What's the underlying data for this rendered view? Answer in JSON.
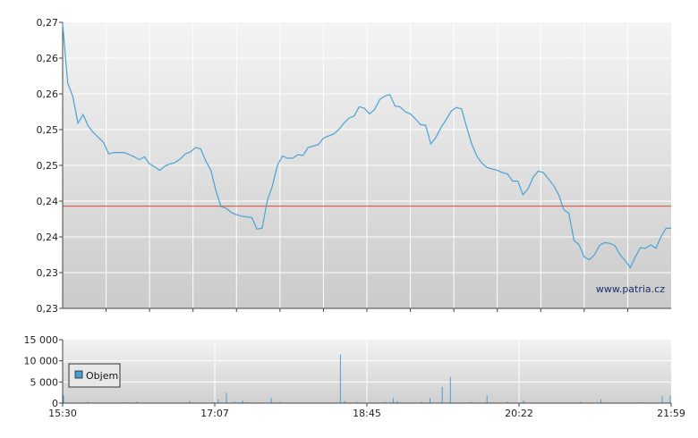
{
  "chart_data": [
    {
      "type": "line",
      "ylim": [
        0.23,
        0.27
      ],
      "ytick_labels": [
        "0,27",
        "0,26",
        "0,26",
        "0,25",
        "0,25",
        "0,24",
        "0,24",
        "0,23",
        "0,23"
      ],
      "reference_value": 0.2443,
      "watermark": "www.patria.cz",
      "colors": {
        "line": "#4aa3d2",
        "reference": "#d84a3a",
        "grid": "#ffffff"
      },
      "series": [
        {
          "values": [
            0.2698,
            0.2615,
            0.2596,
            0.2559,
            0.2571,
            0.2555,
            0.2546,
            0.2539,
            0.2532,
            0.2516,
            0.2518,
            0.2518,
            0.2518,
            0.2515,
            0.2512,
            0.2508,
            0.2512,
            0.2502,
            0.2498,
            0.2493,
            0.2499,
            0.2502,
            0.2504,
            0.2509,
            0.2516,
            0.2519,
            0.2525,
            0.2523,
            0.2506,
            0.2493,
            0.2464,
            0.2442,
            0.244,
            0.2434,
            0.2431,
            0.2429,
            0.2428,
            0.2427,
            0.2411,
            0.2412,
            0.245,
            0.2471,
            0.25,
            0.2513,
            0.251,
            0.251,
            0.2515,
            0.2514,
            0.2525,
            0.2527,
            0.2529,
            0.2538,
            0.2541,
            0.2544,
            0.255,
            0.2559,
            0.2566,
            0.2569,
            0.2582,
            0.258,
            0.2572,
            0.2578,
            0.2592,
            0.2597,
            0.2599,
            0.2583,
            0.2582,
            0.2575,
            0.2572,
            0.2565,
            0.2557,
            0.2556,
            0.253,
            0.2539,
            0.2553,
            0.2564,
            0.2576,
            0.2581,
            0.2579,
            0.2554,
            0.253,
            0.2513,
            0.2503,
            0.2497,
            0.2495,
            0.2493,
            0.249,
            0.2488,
            0.2478,
            0.2478,
            0.2459,
            0.2467,
            0.2483,
            0.2492,
            0.249,
            0.2481,
            0.2472,
            0.2459,
            0.2438,
            0.2433,
            0.2395,
            0.2389,
            0.2372,
            0.2368,
            0.2375,
            0.2388,
            0.2392,
            0.2391,
            0.2388,
            0.2375,
            0.2367,
            0.2357,
            0.2372,
            0.2385,
            0.2384,
            0.2389,
            0.2384,
            0.24,
            0.2412,
            0.2412
          ]
        }
      ],
      "x_tick_labels": [
        "15:30",
        "17:07",
        "18:45",
        "20:22",
        "21:59"
      ]
    },
    {
      "type": "bar",
      "ylim": [
        0,
        15000
      ],
      "ytick_labels": [
        "15 000",
        "10 000",
        "5 000",
        "0"
      ],
      "series": [
        {
          "name": "Objem",
          "values": [
            1800,
            0,
            0,
            0,
            120,
            0,
            300,
            0,
            0,
            150,
            0,
            90,
            0,
            0,
            0,
            200,
            0,
            0,
            350,
            0,
            0,
            80,
            0,
            0,
            0,
            0,
            0,
            120,
            0,
            0,
            0,
            500,
            0,
            0,
            0,
            0,
            0,
            180,
            900,
            0,
            2500,
            0,
            400,
            0,
            600,
            250,
            0,
            0,
            0,
            150,
            0,
            1200,
            0,
            300,
            0,
            0,
            0,
            0,
            0,
            0,
            0,
            0,
            0,
            0,
            0,
            0,
            0,
            0,
            11500,
            500,
            0,
            0,
            300,
            0,
            0,
            0,
            0,
            0,
            0,
            300,
            0,
            1200,
            500,
            0,
            0,
            0,
            0,
            0,
            300,
            0,
            1200,
            0,
            0,
            3800,
            0,
            6200,
            0,
            0,
            0,
            0,
            300,
            0,
            0,
            0,
            1800,
            0,
            0,
            0,
            0,
            400,
            0,
            0,
            0,
            700,
            0,
            0,
            0,
            0,
            0,
            0,
            0,
            0,
            0,
            0,
            0,
            0,
            0,
            300,
            0,
            0,
            0,
            0,
            900,
            0,
            0,
            0,
            0,
            0,
            0,
            0,
            0,
            0,
            200,
            0,
            0,
            0,
            0,
            1600,
            0,
            1800
          ]
        }
      ],
      "legend": {
        "position": "left",
        "label": "Objem",
        "color": "#4a9fd6"
      },
      "x_tick_labels": [
        "15:30",
        "17:07",
        "18:45",
        "20:22",
        "21:59"
      ]
    }
  ]
}
